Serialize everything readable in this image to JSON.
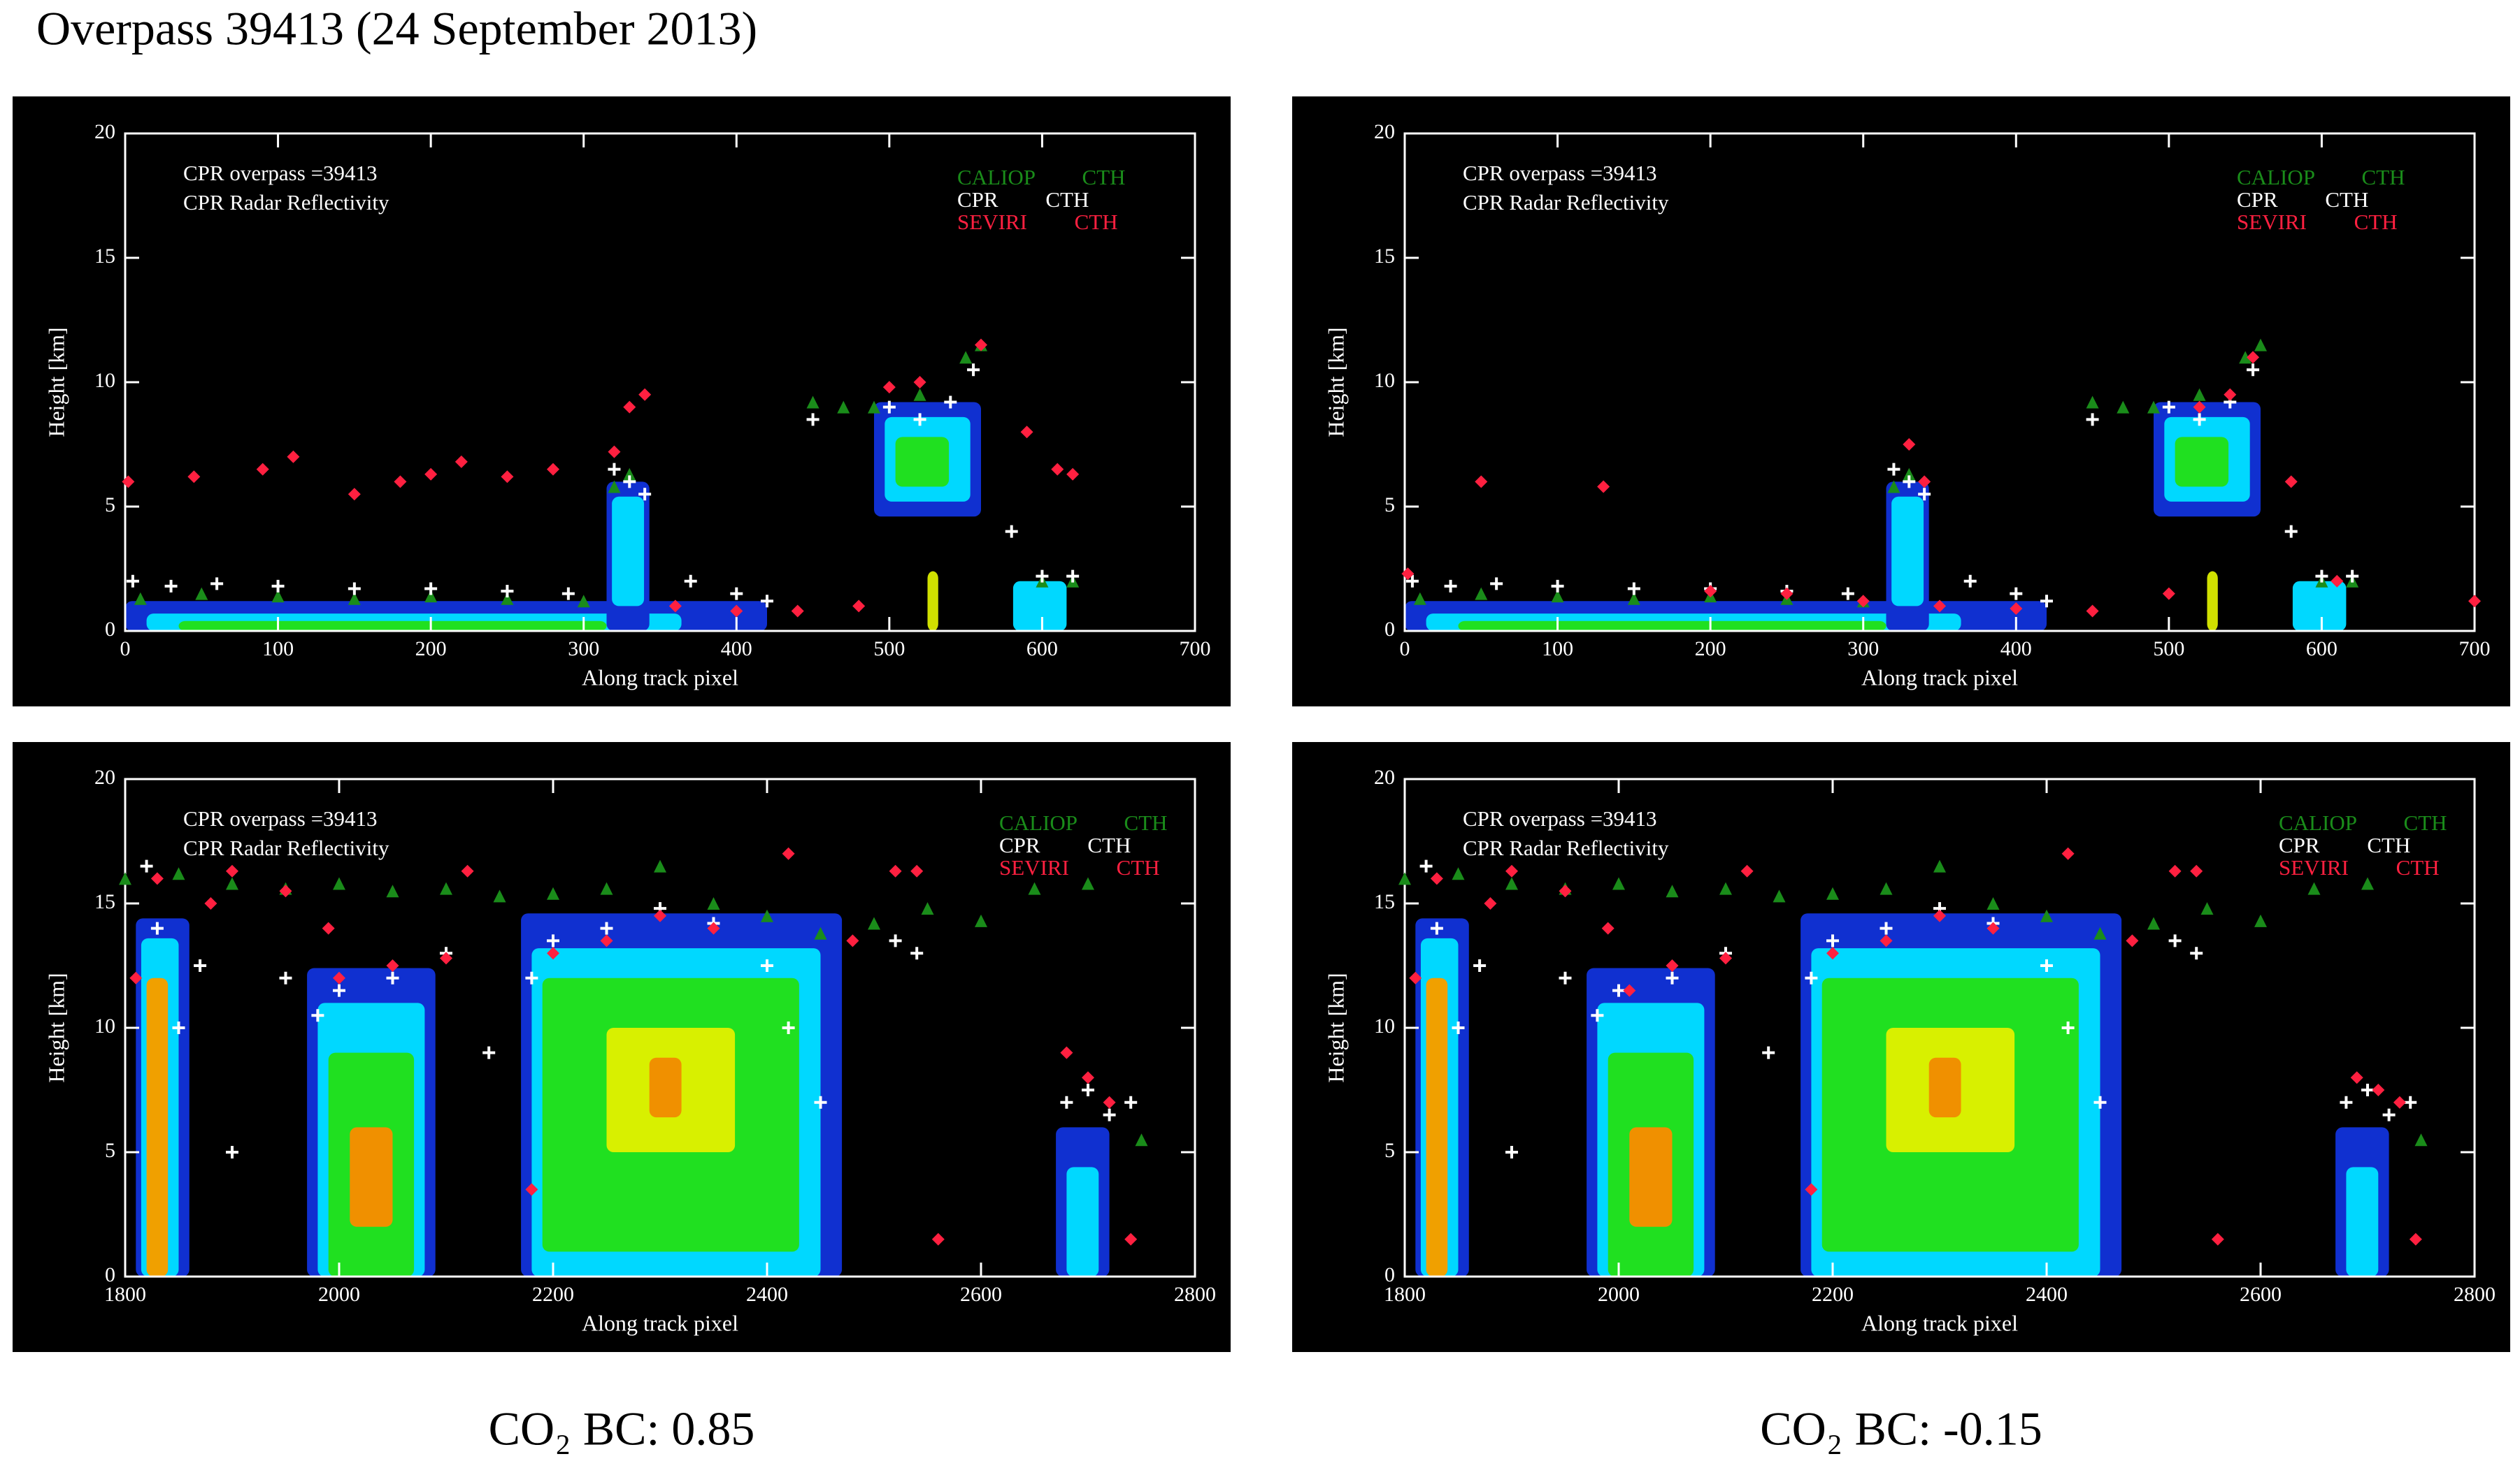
{
  "title": "Overpass 39413 (24 September 2013)",
  "captions": [
    "CO₂ BC: 0.85",
    "CO₂ BC: -0.15"
  ],
  "chart_data": [
    {
      "type": "scatter",
      "annotations": [
        "CPR overpass =39413",
        "CPR Radar Reflectivity"
      ],
      "xlabel": "Along track pixel",
      "ylabel": "Height [km]",
      "xlim": [
        0,
        700
      ],
      "ylim": [
        0,
        20
      ],
      "xticks": [
        0,
        100,
        200,
        300,
        400,
        500,
        600,
        700
      ],
      "yticks": [
        0,
        5,
        10,
        15,
        20
      ],
      "series": [
        {
          "name": "CALIOP CTH",
          "color": "#1a8c1a",
          "marker": "triangle",
          "x": [
            10,
            50,
            100,
            150,
            200,
            250,
            300,
            320,
            330,
            450,
            470,
            490,
            520,
            550,
            560,
            600,
            620
          ],
          "y": [
            1.3,
            1.5,
            1.4,
            1.3,
            1.4,
            1.3,
            1.2,
            5.8,
            6.3,
            9.2,
            9.0,
            9.0,
            9.5,
            11.0,
            11.5,
            2.0,
            2.0
          ]
        },
        {
          "name": "CPR CTH",
          "color": "#ffffff",
          "marker": "plus",
          "x": [
            5,
            30,
            60,
            100,
            150,
            200,
            250,
            290,
            320,
            330,
            340,
            370,
            400,
            420,
            450,
            500,
            520,
            540,
            555,
            580,
            600,
            620
          ],
          "y": [
            2.0,
            1.8,
            1.9,
            1.8,
            1.7,
            1.7,
            1.6,
            1.5,
            6.5,
            6.0,
            5.5,
            2.0,
            1.5,
            1.2,
            8.5,
            9.0,
            8.5,
            9.2,
            10.5,
            4.0,
            2.2,
            2.2
          ]
        },
        {
          "name": "SEVIRI CTH",
          "color": "#ff2040",
          "marker": "diamond",
          "x": [
            2,
            45,
            90,
            110,
            150,
            180,
            200,
            220,
            250,
            280,
            320,
            330,
            340,
            360,
            400,
            440,
            480,
            500,
            520,
            560,
            590,
            610,
            620
          ],
          "y": [
            6.0,
            6.2,
            6.5,
            7.0,
            5.5,
            6.0,
            6.3,
            6.8,
            6.2,
            6.5,
            7.2,
            9.0,
            9.5,
            1.0,
            0.8,
            0.8,
            1.0,
            9.8,
            10.0,
            11.5,
            8.0,
            6.5,
            6.3
          ]
        }
      ]
    },
    {
      "type": "scatter",
      "annotations": [
        "CPR overpass =39413",
        "CPR Radar Reflectivity"
      ],
      "xlabel": "Along track pixel",
      "ylabel": "Height [km]",
      "xlim": [
        0,
        700
      ],
      "ylim": [
        0,
        20
      ],
      "xticks": [
        0,
        100,
        200,
        300,
        400,
        500,
        600,
        700
      ],
      "yticks": [
        0,
        5,
        10,
        15,
        20
      ],
      "series": [
        {
          "name": "CALIOP CTH",
          "color": "#1a8c1a",
          "marker": "triangle",
          "x": [
            10,
            50,
            100,
            150,
            200,
            250,
            300,
            320,
            330,
            450,
            470,
            490,
            520,
            550,
            560,
            600,
            620
          ],
          "y": [
            1.3,
            1.5,
            1.4,
            1.3,
            1.4,
            1.3,
            1.2,
            5.8,
            6.3,
            9.2,
            9.0,
            9.0,
            9.5,
            11.0,
            11.5,
            2.0,
            2.0
          ]
        },
        {
          "name": "CPR CTH",
          "color": "#ffffff",
          "marker": "plus",
          "x": [
            5,
            30,
            60,
            100,
            150,
            200,
            250,
            290,
            320,
            330,
            340,
            370,
            400,
            420,
            450,
            500,
            520,
            540,
            555,
            580,
            600,
            620
          ],
          "y": [
            2.0,
            1.8,
            1.9,
            1.8,
            1.7,
            1.7,
            1.6,
            1.5,
            6.5,
            6.0,
            5.5,
            2.0,
            1.5,
            1.2,
            8.5,
            9.0,
            8.5,
            9.2,
            10.5,
            4.0,
            2.2,
            2.2
          ]
        },
        {
          "name": "SEVIRI CTH",
          "color": "#ff2040",
          "marker": "diamond",
          "x": [
            2,
            50,
            130,
            200,
            250,
            300,
            330,
            340,
            350,
            400,
            450,
            500,
            520,
            540,
            555,
            580,
            610,
            700
          ],
          "y": [
            2.3,
            6.0,
            5.8,
            1.6,
            1.5,
            1.2,
            7.5,
            6.0,
            1.0,
            0.9,
            0.8,
            1.5,
            9.0,
            9.5,
            11.0,
            6.0,
            2.0,
            1.2
          ]
        }
      ]
    },
    {
      "type": "scatter",
      "annotations": [
        "CPR overpass =39413",
        "CPR Radar Reflectivity"
      ],
      "xlabel": "Along track pixel",
      "ylabel": "Height [km]",
      "xlim": [
        1800,
        2800
      ],
      "ylim": [
        0,
        20
      ],
      "xticks": [
        1800,
        2000,
        2200,
        2400,
        2600,
        2800
      ],
      "yticks": [
        0,
        5,
        10,
        15,
        20
      ],
      "series": [
        {
          "name": "CALIOP CTH",
          "color": "#1a8c1a",
          "marker": "triangle",
          "x": [
            1800,
            1850,
            1900,
            1950,
            2000,
            2050,
            2100,
            2150,
            2200,
            2250,
            2300,
            2350,
            2400,
            2450,
            2500,
            2550,
            2600,
            2650,
            2700,
            2750
          ],
          "y": [
            16.0,
            16.2,
            15.8,
            15.6,
            15.8,
            15.5,
            15.6,
            15.3,
            15.4,
            15.6,
            16.5,
            15.0,
            14.5,
            13.8,
            14.2,
            14.8,
            14.3,
            15.6,
            15.8,
            5.5
          ]
        },
        {
          "name": "CPR CTH",
          "color": "#ffffff",
          "marker": "plus",
          "x": [
            1820,
            1830,
            1850,
            1870,
            1900,
            1950,
            1980,
            2000,
            2050,
            2100,
            2140,
            2180,
            2200,
            2250,
            2300,
            2350,
            2400,
            2420,
            2450,
            2520,
            2540,
            2680,
            2700,
            2720,
            2740
          ],
          "y": [
            16.5,
            14.0,
            10.0,
            12.5,
            5.0,
            12.0,
            10.5,
            11.5,
            12.0,
            13.0,
            9.0,
            12.0,
            13.5,
            14.0,
            14.8,
            14.2,
            12.5,
            10.0,
            7.0,
            13.5,
            13.0,
            7.0,
            7.5,
            6.5,
            7.0
          ]
        },
        {
          "name": "SEVIRI CTH",
          "color": "#ff2040",
          "marker": "diamond",
          "x": [
            1810,
            1830,
            1880,
            1900,
            1950,
            1990,
            2000,
            2050,
            2100,
            2120,
            2180,
            2200,
            2250,
            2300,
            2350,
            2420,
            2480,
            2520,
            2540,
            2560,
            2680,
            2700,
            2720,
            2740
          ],
          "y": [
            12.0,
            16.0,
            15.0,
            16.3,
            15.5,
            14.0,
            12.0,
            12.5,
            12.8,
            16.3,
            3.5,
            13.0,
            13.5,
            14.5,
            14.0,
            17.0,
            13.5,
            16.3,
            16.3,
            1.5,
            9.0,
            8.0,
            7.0,
            1.5
          ]
        }
      ]
    },
    {
      "type": "scatter",
      "annotations": [
        "CPR overpass =39413",
        "CPR Radar Reflectivity"
      ],
      "xlabel": "Along track pixel",
      "ylabel": "Height [km]",
      "xlim": [
        1800,
        2800
      ],
      "ylim": [
        0,
        20
      ],
      "xticks": [
        1800,
        2000,
        2200,
        2400,
        2600,
        2800
      ],
      "yticks": [
        0,
        5,
        10,
        15,
        20
      ],
      "series": [
        {
          "name": "CALIOP CTH",
          "color": "#1a8c1a",
          "marker": "triangle",
          "x": [
            1800,
            1850,
            1900,
            1950,
            2000,
            2050,
            2100,
            2150,
            2200,
            2250,
            2300,
            2350,
            2400,
            2450,
            2500,
            2550,
            2600,
            2650,
            2700,
            2750
          ],
          "y": [
            16.0,
            16.2,
            15.8,
            15.6,
            15.8,
            15.5,
            15.6,
            15.3,
            15.4,
            15.6,
            16.5,
            15.0,
            14.5,
            13.8,
            14.2,
            14.8,
            14.3,
            15.6,
            15.8,
            5.5
          ]
        },
        {
          "name": "CPR CTH",
          "color": "#ffffff",
          "marker": "plus",
          "x": [
            1820,
            1830,
            1850,
            1870,
            1900,
            1950,
            1980,
            2000,
            2050,
            2100,
            2140,
            2180,
            2200,
            2250,
            2300,
            2350,
            2400,
            2420,
            2450,
            2520,
            2540,
            2680,
            2700,
            2720,
            2740
          ],
          "y": [
            16.5,
            14.0,
            10.0,
            12.5,
            5.0,
            12.0,
            10.5,
            11.5,
            12.0,
            13.0,
            9.0,
            12.0,
            13.5,
            14.0,
            14.8,
            14.2,
            12.5,
            10.0,
            7.0,
            13.5,
            13.0,
            7.0,
            7.5,
            6.5,
            7.0
          ]
        },
        {
          "name": "SEVIRI CTH",
          "color": "#ff2040",
          "marker": "diamond",
          "x": [
            1810,
            1830,
            1880,
            1900,
            1950,
            1990,
            2010,
            2050,
            2100,
            2120,
            2180,
            2200,
            2250,
            2300,
            2350,
            2420,
            2480,
            2520,
            2540,
            2560,
            2690,
            2710,
            2730,
            2745
          ],
          "y": [
            12.0,
            16.0,
            15.0,
            16.3,
            15.5,
            14.0,
            11.5,
            12.5,
            12.8,
            16.3,
            3.5,
            13.0,
            13.5,
            14.5,
            14.0,
            17.0,
            13.5,
            16.3,
            16.3,
            1.5,
            8.0,
            7.5,
            7.0,
            1.5
          ]
        }
      ]
    }
  ]
}
